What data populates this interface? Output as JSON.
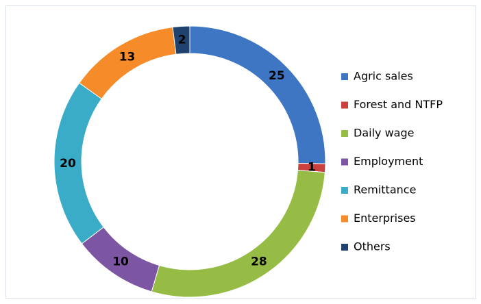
{
  "chart_data": {
    "type": "pie",
    "donut": true,
    "categories": [
      "Agric sales",
      "Forest and NTFP",
      "Daily wage",
      "Employment",
      "Remittance",
      "Enterprises",
      "Others"
    ],
    "values": [
      25,
      1,
      28,
      10,
      20,
      13,
      2
    ],
    "colors": [
      "#3f76c4",
      "#c9403c",
      "#96bc45",
      "#7d56a3",
      "#3aacc8",
      "#f68b2a",
      "#1f426e"
    ],
    "legend": "right"
  }
}
